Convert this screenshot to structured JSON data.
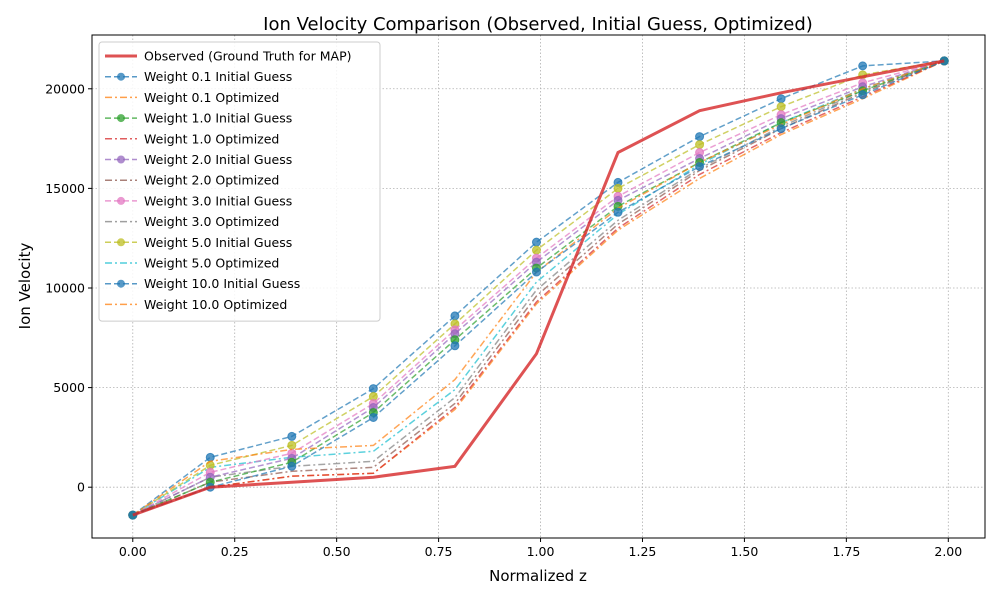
{
  "chart_data": {
    "type": "line",
    "title": "Ion Velocity Comparison (Observed, Initial Guess, Optimized)",
    "xlabel": "Normalized z",
    "ylabel": "Ion Velocity",
    "xlim": [
      -0.1,
      2.09
    ],
    "ylim": [
      -2550,
      22700
    ],
    "xticks": [
      0.0,
      0.25,
      0.5,
      0.75,
      1.0,
      1.25,
      1.5,
      1.75,
      2.0
    ],
    "xtick_labels": [
      "0.00",
      "0.25",
      "0.50",
      "0.75",
      "1.00",
      "1.25",
      "1.50",
      "1.75",
      "2.00"
    ],
    "yticks": [
      0,
      5000,
      10000,
      15000,
      20000
    ],
    "ytick_labels": [
      "0",
      "5000",
      "10000",
      "15000",
      "20000"
    ],
    "grid": true,
    "legend_position": "top-left",
    "x": [
      0.0,
      0.19,
      0.39,
      0.59,
      0.79,
      0.99,
      1.19,
      1.39,
      1.59,
      1.79,
      1.99
    ],
    "series": [
      {
        "name": "Observed (Ground Truth for MAP)",
        "color": "#d62728",
        "style": "solid",
        "marker": false,
        "values": [
          -1400,
          0,
          250,
          500,
          1050,
          6700,
          16800,
          18900,
          19800,
          20600,
          21400
        ]
      },
      {
        "name": "Weight 0.1 Initial Guess",
        "color": "#1f77b4",
        "style": "dashed",
        "marker": true,
        "values": [
          -1400,
          0,
          1050,
          3500,
          7100,
          10800,
          13800,
          16100,
          18000,
          19700,
          21400
        ]
      },
      {
        "name": "Weight 0.1 Optimized",
        "color": "#ff7f0e",
        "style": "dashdot",
        "marker": false,
        "values": [
          -1400,
          1300,
          1900,
          2100,
          5400,
          10800,
          14000,
          16300,
          18200,
          20000,
          21400
        ]
      },
      {
        "name": "Weight 1.0 Initial Guess",
        "color": "#2ca02c",
        "style": "dashed",
        "marker": true,
        "values": [
          -1400,
          250,
          1250,
          3750,
          7400,
          11000,
          14100,
          16300,
          18300,
          19900,
          21400
        ]
      },
      {
        "name": "Weight 1.0 Optimized",
        "color": "#d62728",
        "style": "dashdot",
        "marker": false,
        "values": [
          -1400,
          0,
          550,
          700,
          4000,
          9300,
          13000,
          15700,
          17800,
          19600,
          21400
        ]
      },
      {
        "name": "Weight 2.0 Initial Guess",
        "color": "#9467bd",
        "style": "dashed",
        "marker": true,
        "values": [
          -1400,
          500,
          1450,
          4000,
          7700,
          11300,
          14400,
          16500,
          18500,
          20100,
          21400
        ]
      },
      {
        "name": "Weight 2.0 Optimized",
        "color": "#8c564b",
        "style": "dashdot",
        "marker": false,
        "values": [
          -1400,
          250,
          800,
          1000,
          4200,
          9600,
          13200,
          15900,
          18000,
          19800,
          21400
        ]
      },
      {
        "name": "Weight 3.0 Initial Guess",
        "color": "#e377c2",
        "style": "dashed",
        "marker": true,
        "values": [
          -1400,
          750,
          1700,
          4200,
          7900,
          11500,
          14600,
          16800,
          18700,
          20300,
          21400
        ]
      },
      {
        "name": "Weight 3.0 Optimized",
        "color": "#7f7f7f",
        "style": "dashdot",
        "marker": false,
        "values": [
          -1400,
          500,
          1050,
          1300,
          4500,
          9900,
          13400,
          16000,
          18100,
          19900,
          21400
        ]
      },
      {
        "name": "Weight 5.0 Initial Guess",
        "color": "#bcbd22",
        "style": "dashed",
        "marker": true,
        "values": [
          -1400,
          1100,
          2100,
          4550,
          8200,
          11900,
          15000,
          17200,
          19100,
          20700,
          21400
        ]
      },
      {
        "name": "Weight 5.0 Optimized",
        "color": "#17becf",
        "style": "dashdot",
        "marker": false,
        "values": [
          -1400,
          1000,
          1500,
          1800,
          4900,
          10300,
          13700,
          16200,
          18300,
          20000,
          21400
        ]
      },
      {
        "name": "Weight 10.0 Initial Guess",
        "color": "#1f77b4",
        "style": "dashed",
        "marker": true,
        "values": [
          -1400,
          1500,
          2550,
          4950,
          8600,
          12300,
          15300,
          17600,
          19500,
          21150,
          21400
        ]
      },
      {
        "name": "Weight 10.0 Optimized",
        "color": "#ff7f0e",
        "style": "dashdot",
        "marker": false,
        "values": [
          -1400,
          0,
          550,
          700,
          3900,
          9200,
          12900,
          15500,
          17700,
          19500,
          21400
        ]
      }
    ]
  }
}
